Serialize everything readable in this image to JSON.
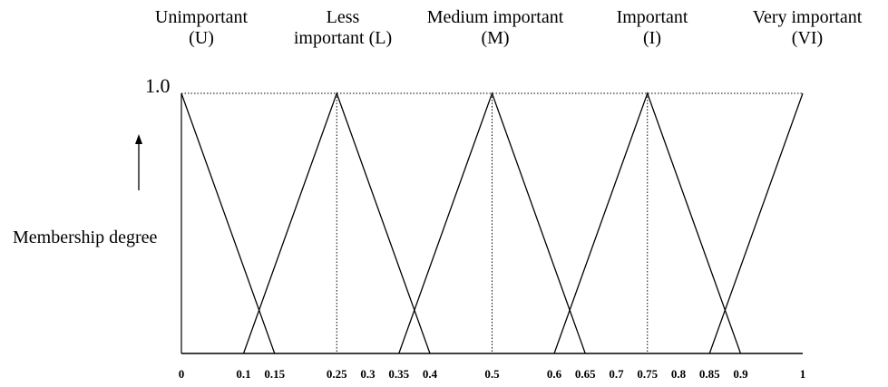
{
  "chart_data": {
    "type": "line",
    "title": "",
    "xlabel": "",
    "ylabel": "Membership degree",
    "ymax_label": "1.0",
    "xlim": [
      0,
      1
    ],
    "ylim": [
      0,
      1
    ],
    "xticks": [
      0,
      0.1,
      0.15,
      0.25,
      0.3,
      0.35,
      0.4,
      0.5,
      0.6,
      0.65,
      0.7,
      0.75,
      0.8,
      0.85,
      0.9,
      1
    ],
    "xtick_labels": [
      "0",
      "0.1",
      "0.15",
      "0.25",
      "0.3",
      "0.35",
      "0.4",
      "0.5",
      "0.6",
      "0.65",
      "0.7",
      "0.75",
      "0.8",
      "0.85",
      "0.9",
      "1"
    ],
    "series": [
      {
        "name": "Unimportant (U)",
        "line1": "Unimportant",
        "line2": "(U)",
        "points": [
          [
            0,
            1
          ],
          [
            0.15,
            0
          ]
        ]
      },
      {
        "name": "Less important (L)",
        "line1": "Less",
        "line2": "important  (L)",
        "points": [
          [
            0.1,
            0
          ],
          [
            0.25,
            1
          ],
          [
            0.4,
            0
          ]
        ]
      },
      {
        "name": "Medium important (M)",
        "line1": "Medium important",
        "line2": "(M)",
        "points": [
          [
            0.35,
            0
          ],
          [
            0.5,
            1
          ],
          [
            0.65,
            0
          ]
        ]
      },
      {
        "name": "Important (I)",
        "line1": "Important",
        "line2": "(I)",
        "points": [
          [
            0.6,
            0
          ],
          [
            0.75,
            1
          ],
          [
            0.9,
            0
          ]
        ]
      },
      {
        "name": "Very important (VI)",
        "line1": "Very important",
        "line2": "(VI)",
        "points": [
          [
            0.85,
            0
          ],
          [
            1,
            1
          ]
        ]
      }
    ],
    "peak_guides": [
      0.25,
      0.5,
      0.75
    ],
    "grid": false
  }
}
